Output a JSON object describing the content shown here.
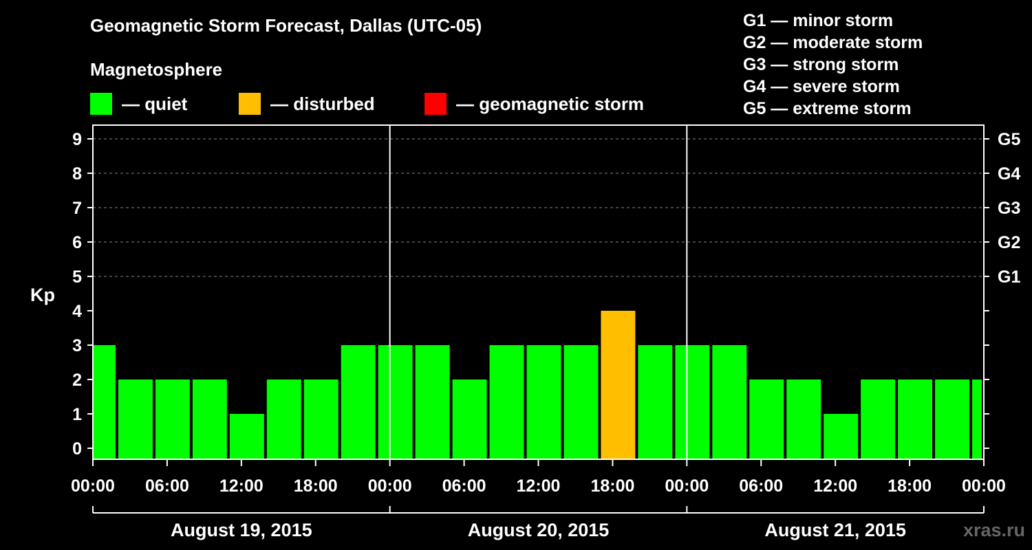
{
  "chart_data": {
    "type": "bar",
    "title": "Geomagnetic Storm Forecast, Dallas (UTC-05)",
    "subtitle": "Magnetosphere",
    "ylabel": "Kp",
    "ylim": [
      0,
      9
    ],
    "yticks": [
      "0",
      "1",
      "2",
      "3",
      "4",
      "5",
      "6",
      "7",
      "8",
      "9"
    ],
    "right_ticks": [
      {
        "kp": 5,
        "label": "G1"
      },
      {
        "kp": 6,
        "label": "G2"
      },
      {
        "kp": 7,
        "label": "G3"
      },
      {
        "kp": 8,
        "label": "G4"
      },
      {
        "kp": 9,
        "label": "G5"
      }
    ],
    "x_range_hours": [
      0,
      72
    ],
    "first_bar_start_hour": -1,
    "bar_interval_hours": 3,
    "xticks": [
      "00:00",
      "06:00",
      "12:00",
      "18:00",
      "00:00",
      "06:00",
      "12:00",
      "18:00",
      "00:00",
      "06:00",
      "12:00",
      "18:00",
      "00:00"
    ],
    "days": [
      "August 19, 2015",
      "August 20, 2015",
      "August 21, 2015"
    ],
    "values": [
      3,
      2,
      2,
      2,
      1,
      2,
      2,
      3,
      3,
      3,
      2,
      3,
      3,
      3,
      4,
      3,
      3,
      3,
      2,
      2,
      1,
      2,
      2,
      2,
      2
    ],
    "legend": [
      {
        "label": "— quiet",
        "color": "#00ff00"
      },
      {
        "label": "— disturbed",
        "color": "#ffbf00"
      },
      {
        "label": "— geomagnetic storm",
        "color": "#ff0000"
      }
    ]
  },
  "storm_scale": [
    "G1 — minor storm",
    "G2 — moderate storm",
    "G3 — strong storm",
    "G4 — severe storm",
    "G5 — extreme storm"
  ],
  "watermark": "xras.ru",
  "colors": {
    "quiet": "#00ff00",
    "disturbed": "#ffbf00",
    "storm": "#ff0000",
    "grid": "#888888"
  }
}
